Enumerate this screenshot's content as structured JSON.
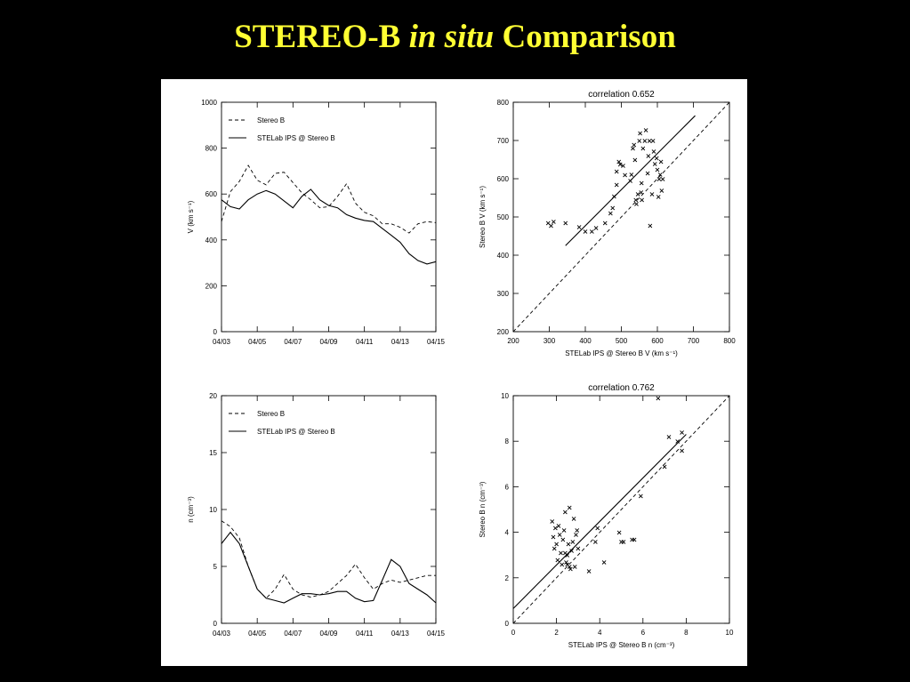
{
  "slide": {
    "title_a": "STEREO-B",
    "title_b": "in situ",
    "title_c": "Comparison"
  },
  "chart_data": [
    {
      "id": "velocity-timeseries",
      "type": "line",
      "xlabel": "",
      "ylabel": "V (km s⁻¹)",
      "ylim": [
        0,
        1000
      ],
      "yticks": [
        0,
        200,
        400,
        600,
        800,
        1000
      ],
      "xlim": [
        0,
        12
      ],
      "xticklabels": [
        "04/03",
        "04/05",
        "04/07",
        "04/09",
        "04/11",
        "04/13",
        "04/15"
      ],
      "legend_position": "top-left",
      "series": [
        {
          "name": "Stereo B",
          "style": "dashed",
          "x": [
            0,
            0.5,
            1,
            1.5,
            2,
            2.5,
            3,
            3.5,
            4,
            4.5,
            5,
            5.5,
            6,
            6.5,
            7,
            7.5,
            8,
            8.5,
            9,
            9.5,
            10,
            10.5,
            11,
            11.5,
            12
          ],
          "y": [
            480,
            610,
            655,
            725,
            660,
            640,
            690,
            695,
            650,
            605,
            575,
            540,
            545,
            590,
            645,
            560,
            520,
            505,
            470,
            470,
            455,
            430,
            470,
            480,
            475
          ]
        },
        {
          "name": "STELab IPS @ Stereo B",
          "style": "solid",
          "x": [
            0,
            0.5,
            1,
            1.5,
            2,
            2.5,
            3,
            3.5,
            4,
            4.5,
            5,
            5.5,
            6,
            6.5,
            7,
            7.5,
            8,
            8.5,
            9,
            9.5,
            10,
            10.5,
            11,
            11.5,
            12
          ],
          "y": [
            575,
            545,
            535,
            575,
            600,
            615,
            600,
            570,
            540,
            590,
            620,
            575,
            550,
            540,
            510,
            495,
            485,
            480,
            450,
            420,
            390,
            340,
            310,
            295,
            305
          ]
        }
      ]
    },
    {
      "id": "velocity-correlation",
      "type": "scatter",
      "title": "correlation 0.652",
      "xlabel": "STELab IPS @ Stereo B V (km s⁻¹)",
      "ylabel": "Stereo B V (km s⁻¹)",
      "xlim": [
        200,
        800
      ],
      "ylim": [
        200,
        800
      ],
      "xticks": [
        200,
        300,
        400,
        500,
        600,
        700,
        800
      ],
      "yticks": [
        200,
        300,
        400,
        500,
        600,
        700,
        800
      ],
      "fit_line": {
        "x": [
          345,
          705
        ],
        "y": [
          425,
          765
        ]
      },
      "identity_line": true,
      "points": [
        [
          297,
          485
        ],
        [
          305,
          478
        ],
        [
          312,
          488
        ],
        [
          345,
          485
        ],
        [
          383,
          475
        ],
        [
          400,
          463
        ],
        [
          418,
          463
        ],
        [
          430,
          472
        ],
        [
          455,
          485
        ],
        [
          470,
          510
        ],
        [
          476,
          525
        ],
        [
          480,
          555
        ],
        [
          487,
          585
        ],
        [
          487,
          620
        ],
        [
          493,
          645
        ],
        [
          497,
          638
        ],
        [
          505,
          635
        ],
        [
          510,
          610
        ],
        [
          525,
          595
        ],
        [
          528,
          612
        ],
        [
          532,
          680
        ],
        [
          535,
          690
        ],
        [
          538,
          650
        ],
        [
          540,
          545
        ],
        [
          542,
          535
        ],
        [
          546,
          560
        ],
        [
          550,
          700
        ],
        [
          552,
          720
        ],
        [
          555,
          565
        ],
        [
          556,
          590
        ],
        [
          557,
          545
        ],
        [
          560,
          680
        ],
        [
          565,
          700
        ],
        [
          568,
          728
        ],
        [
          573,
          615
        ],
        [
          575,
          660
        ],
        [
          578,
          700
        ],
        [
          580,
          478
        ],
        [
          585,
          560
        ],
        [
          588,
          700
        ],
        [
          590,
          672
        ],
        [
          593,
          640
        ],
        [
          598,
          655
        ],
        [
          600,
          625
        ],
        [
          603,
          553
        ],
        [
          605,
          600
        ],
        [
          608,
          612
        ],
        [
          610,
          645
        ],
        [
          612,
          570
        ],
        [
          615,
          600
        ]
      ]
    },
    {
      "id": "density-timeseries",
      "type": "line",
      "xlabel": "",
      "ylabel": "n (cm⁻³)",
      "ylim": [
        0,
        20
      ],
      "yticks": [
        0,
        5,
        10,
        15,
        20
      ],
      "xlim": [
        0,
        12
      ],
      "xticklabels": [
        "04/03",
        "04/05",
        "04/07",
        "04/09",
        "04/11",
        "04/13",
        "04/15"
      ],
      "legend_position": "top-left",
      "series": [
        {
          "name": "Stereo B",
          "style": "dashed",
          "x": [
            0,
            0.5,
            1,
            1.5,
            2,
            2.5,
            3,
            3.5,
            4,
            4.5,
            5,
            5.5,
            6,
            6.5,
            7,
            7.5,
            8,
            8.5,
            9,
            9.5,
            10,
            10.5,
            11,
            11.5,
            12
          ],
          "y": [
            9.0,
            8.5,
            7.5,
            5.0,
            3.0,
            2.2,
            3.0,
            4.3,
            3.0,
            2.5,
            2.3,
            2.5,
            2.8,
            3.5,
            4.2,
            5.2,
            4.0,
            3.0,
            3.5,
            3.8,
            3.6,
            3.8,
            4.0,
            4.2,
            4.2
          ]
        },
        {
          "name": "STELab IPS @ Stereo B",
          "style": "solid",
          "x": [
            0,
            0.5,
            1,
            1.5,
            2,
            2.5,
            3,
            3.5,
            4,
            4.5,
            5,
            5.5,
            6,
            6.5,
            7,
            7.5,
            8,
            8.5,
            9,
            9.5,
            10,
            10.5,
            11,
            11.5,
            12
          ],
          "y": [
            7.0,
            8.0,
            7.0,
            5.0,
            3.0,
            2.2,
            2.0,
            1.8,
            2.2,
            2.6,
            2.6,
            2.5,
            2.6,
            2.8,
            2.8,
            2.2,
            1.9,
            2.0,
            3.8,
            5.6,
            5.0,
            3.5,
            3.0,
            2.5,
            1.8
          ]
        }
      ]
    },
    {
      "id": "density-correlation",
      "type": "scatter",
      "title": "correlation 0.762",
      "xlabel": "STELab IPS @ Stereo B n (cm⁻³)",
      "ylabel": "Stereo B n (cm⁻³)",
      "xlim": [
        0,
        10
      ],
      "ylim": [
        0,
        10
      ],
      "xticks": [
        0,
        2,
        4,
        6,
        8,
        10
      ],
      "yticks": [
        0,
        2,
        4,
        6,
        8,
        10
      ],
      "fit_line": {
        "x": [
          0,
          8
        ],
        "y": [
          0.65,
          8.3
        ]
      },
      "identity_line": true,
      "points": [
        [
          1.8,
          4.5
        ],
        [
          1.85,
          3.8
        ],
        [
          1.9,
          3.3
        ],
        [
          1.95,
          4.2
        ],
        [
          2.0,
          3.5
        ],
        [
          2.05,
          2.8
        ],
        [
          2.1,
          4.3
        ],
        [
          2.15,
          3.9
        ],
        [
          2.2,
          3.1
        ],
        [
          2.25,
          2.6
        ],
        [
          2.3,
          3.7
        ],
        [
          2.35,
          4.1
        ],
        [
          2.4,
          4.9
        ],
        [
          2.4,
          3.1
        ],
        [
          2.45,
          2.7
        ],
        [
          2.5,
          2.6
        ],
        [
          2.5,
          3.0
        ],
        [
          2.55,
          3.5
        ],
        [
          2.6,
          5.1
        ],
        [
          2.6,
          2.5
        ],
        [
          2.65,
          2.4
        ],
        [
          2.7,
          3.2
        ],
        [
          2.75,
          3.6
        ],
        [
          2.8,
          4.6
        ],
        [
          2.85,
          2.5
        ],
        [
          2.9,
          3.9
        ],
        [
          2.95,
          4.1
        ],
        [
          3.0,
          3.3
        ],
        [
          3.5,
          2.3
        ],
        [
          3.8,
          3.6
        ],
        [
          3.9,
          4.2
        ],
        [
          4.2,
          2.7
        ],
        [
          4.9,
          4.0
        ],
        [
          5.0,
          3.6
        ],
        [
          5.1,
          3.6
        ],
        [
          5.5,
          3.7
        ],
        [
          5.6,
          3.7
        ],
        [
          5.9,
          5.6
        ],
        [
          6.7,
          9.9
        ],
        [
          7.0,
          6.9
        ],
        [
          7.2,
          8.2
        ],
        [
          7.6,
          8.0
        ],
        [
          7.8,
          7.6
        ],
        [
          7.8,
          8.4
        ]
      ]
    }
  ]
}
